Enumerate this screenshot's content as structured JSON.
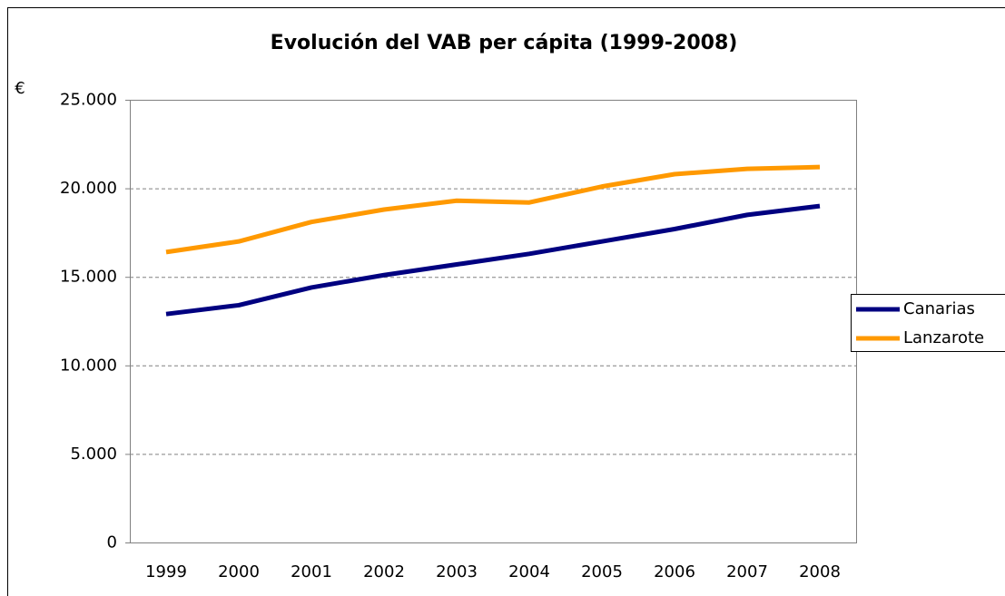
{
  "chart_data": {
    "type": "line",
    "title": "Evolución del VAB per cápita (1999-2008)",
    "y_label": "€",
    "categories": [
      "1999",
      "2000",
      "2001",
      "2002",
      "2003",
      "2004",
      "2005",
      "2006",
      "2007",
      "2008"
    ],
    "series": [
      {
        "name": "Canarias",
        "color": "#000080",
        "values": [
          12900,
          13400,
          14400,
          15100,
          15700,
          16300,
          17000,
          17700,
          18500,
          19000
        ]
      },
      {
        "name": "Lanzarote",
        "color": "#ff9900",
        "values": [
          16400,
          17000,
          18100,
          18800,
          19300,
          19200,
          20100,
          20800,
          21100,
          21200
        ]
      }
    ],
    "ylim": [
      0,
      25000
    ],
    "yticks": [
      0,
      {
        "value": 5000,
        "label": "5.000"
      },
      {
        "value": 10000,
        "label": "10.000"
      },
      {
        "value": 15000,
        "label": "15.000"
      },
      {
        "value": 20000,
        "label": "20.000"
      },
      {
        "value": 25000,
        "label": "25.000"
      }
    ],
    "grid": true,
    "legend": "right"
  }
}
